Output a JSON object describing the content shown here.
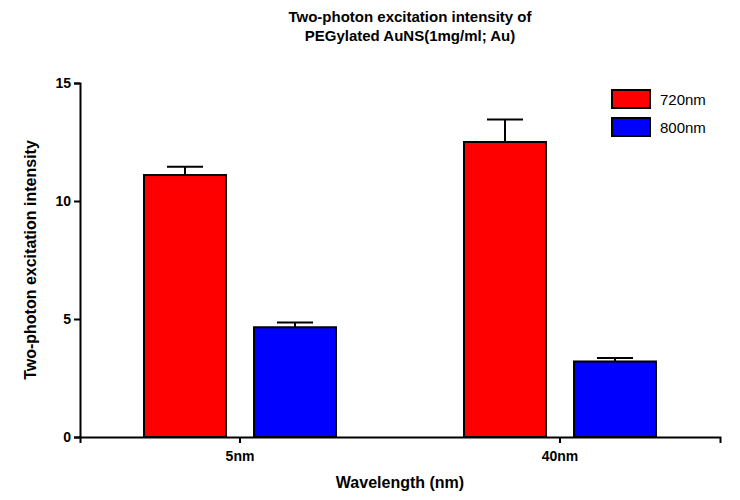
{
  "chart_data": {
    "type": "bar",
    "title": "Two-photon excitation intensity of\nPEGylated AuNS(1mg/ml; Au)",
    "x_label": "Wavelength (nm)",
    "y_label": "Two-photon excitation intensity",
    "categories": [
      "5nm",
      "40nm"
    ],
    "series": [
      {
        "name": "720nm",
        "color": "#ff0000",
        "values": [
          11.1,
          12.5
        ],
        "errors": [
          0.35,
          0.95
        ]
      },
      {
        "name": "800nm",
        "color": "#0000ff",
        "values": [
          4.65,
          3.2
        ],
        "errors": [
          0.2,
          0.15
        ]
      }
    ],
    "ylim": [
      0,
      15
    ],
    "yticks": [
      0,
      5,
      10,
      15
    ],
    "grid": false,
    "legend": "upper right"
  }
}
